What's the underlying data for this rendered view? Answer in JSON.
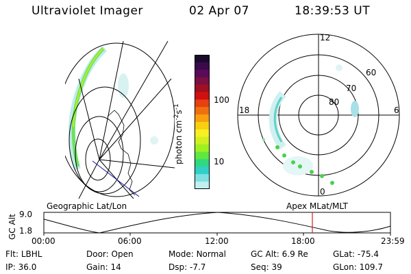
{
  "header": {
    "instrument": "Ultraviolet Imager",
    "date": "02 Apr 07",
    "time": "18:39:53 UT"
  },
  "colorbar": {
    "label_main": "photon cm",
    "label_exp1": "-2",
    "label_s": "s",
    "label_exp2": "-1",
    "ticks": [
      "100",
      "10"
    ],
    "colors": [
      "#1a0a2e",
      "#3a0a4a",
      "#5a0a5a",
      "#7a1040",
      "#a01020",
      "#d01010",
      "#e84010",
      "#f07010",
      "#f8a010",
      "#f8d010",
      "#f8f020",
      "#d0f020",
      "#a0f020",
      "#60e840",
      "#30d880",
      "#30d0c8",
      "#80e0e0",
      "#c0f0f0"
    ]
  },
  "polar": {
    "mlt_labels": {
      "top": "12",
      "left": "18",
      "right": "6",
      "bottom": "0"
    },
    "lat_labels": [
      "60",
      "70",
      "80"
    ]
  },
  "panel_labels": {
    "geographic": "Geographic Lat/Lon",
    "apex": "Apex MLat/MLT"
  },
  "timeline": {
    "axis_label": "GC Alt",
    "y_ticks": [
      "9.0",
      "1.8"
    ],
    "x_ticks": [
      "00:00",
      "06:00",
      "12:00",
      "18:00",
      "23:59"
    ],
    "current_time_marker_color": "#d02020"
  },
  "status": {
    "filter_label": "Flt:",
    "filter_value": "LBHL",
    "door_label": "Door:",
    "door_value": "Open",
    "mode_label": "Mode:",
    "mode_value": "Normal",
    "gcalt_label": "GC Alt:",
    "gcalt_value": "6.9 Re",
    "glat_label": "GLat:",
    "glat_value": "-75.4",
    "ip_label": "IP:",
    "ip_value": "36.0",
    "gain_label": "Gain:",
    "gain_value": "14",
    "dsp_label": "Dsp:",
    "dsp_value": "-7.7",
    "seq_label": "Seq:",
    "seq_value": "39",
    "glon_label": "GLon:",
    "glon_value": "109.7"
  }
}
